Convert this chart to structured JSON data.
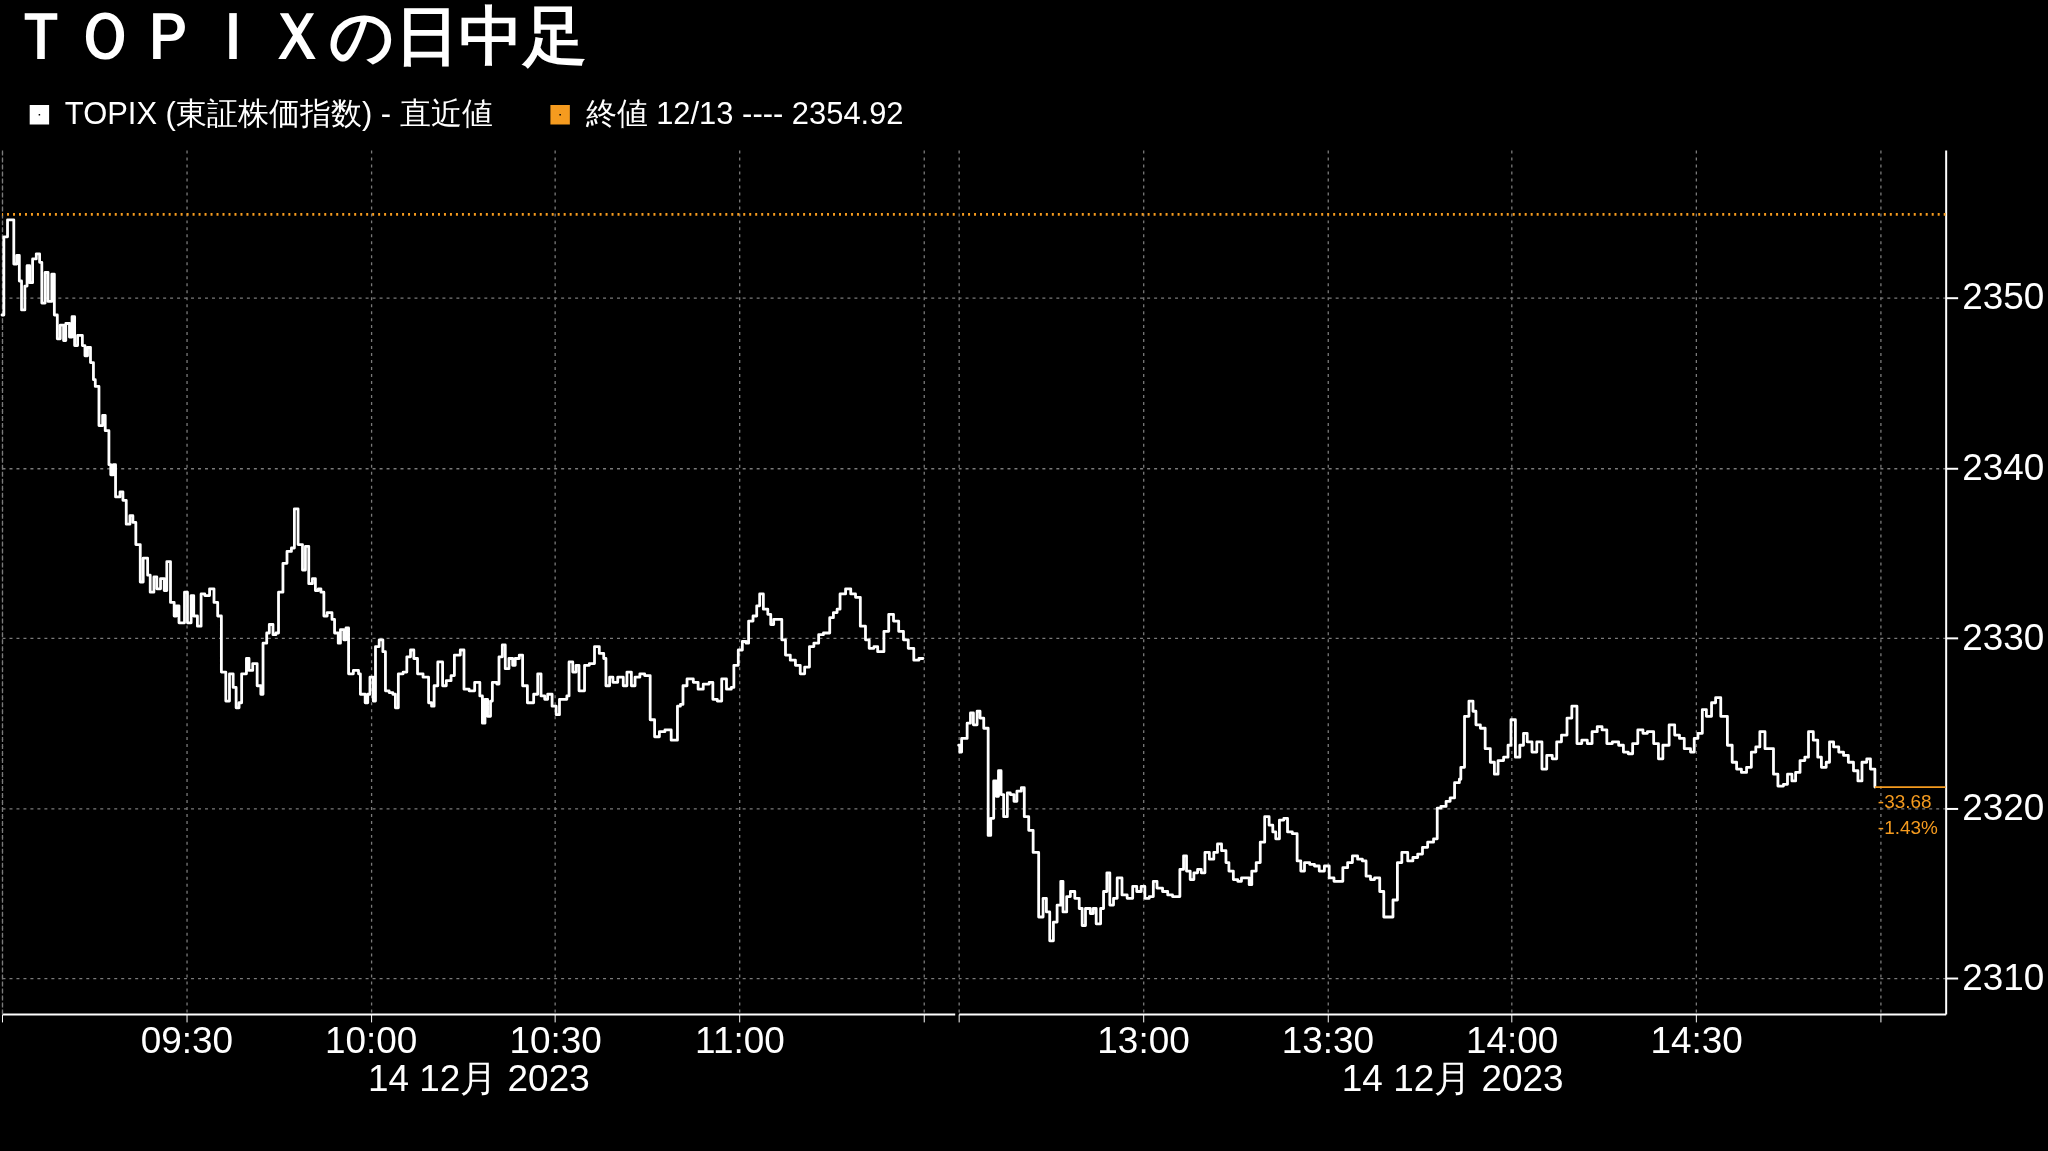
{
  "chart_data": [
    {
      "type": "step",
      "title": "ＴＯＰＩＸの日中足",
      "xlabel": "14 12月 2023",
      "legend": "top",
      "grid": true,
      "tick_labels": "x",
      "line_style": "solid",
      "xlim": [
        9.0,
        11.584
      ],
      "xticks": [
        {
          "value": 9,
          "label": null
        },
        {
          "value": 9.5,
          "label": "09:30"
        },
        {
          "value": 10,
          "label": "10:00"
        },
        {
          "value": 10.5,
          "label": "10:30"
        },
        {
          "value": 11,
          "label": "11:00"
        },
        {
          "value": 11.5,
          "label": null
        }
      ],
      "ylim": [
        2307.9,
        2358.7
      ],
      "yticks": [
        2310,
        2320,
        2330,
        2340,
        2350
      ],
      "ref_lines": [
        {
          "axis": "y",
          "value": 2354.92,
          "label": "終値 12/13 ---- 2354.92",
          "color": "#f59b1f",
          "line_style": "dotted"
        }
      ],
      "series": [
        {
          "name": "TOPIX (東証株価指数) - 直近値",
          "color": "#ffffff",
          "x": [
            9.0,
            9.005,
            9.015,
            9.032,
            9.04,
            9.047,
            9.053,
            9.062,
            9.068,
            9.075,
            9.083,
            9.093,
            9.102,
            9.108,
            9.117,
            9.125,
            9.135,
            9.142,
            9.15,
            9.158,
            9.167,
            9.173,
            9.183,
            9.19,
            9.197,
            9.205,
            9.218,
            9.225,
            9.232,
            9.24,
            9.248,
            9.253,
            9.263,
            9.273,
            9.28,
            9.29,
            9.295,
            9.302,
            9.308,
            9.32,
            9.328,
            9.337,
            9.347,
            9.355,
            9.363,
            9.375,
            9.383,
            9.395,
            9.402,
            9.412,
            9.42,
            9.43,
            9.44,
            9.447,
            9.457,
            9.467,
            9.473,
            9.48,
            9.495,
            9.503,
            9.513,
            9.52,
            9.53,
            9.54,
            9.55,
            9.563,
            9.575,
            9.585,
            9.595,
            9.607,
            9.617,
            9.627,
            9.635,
            9.643,
            9.65,
            9.663,
            9.67,
            9.68,
            9.692,
            9.702,
            9.708,
            9.718,
            9.725,
            9.735,
            9.743,
            9.75,
            9.762,
            9.773,
            9.785,
            9.793,
            9.803,
            9.815,
            9.823,
            9.832,
            9.842,
            9.85,
            9.858,
            9.865,
            9.873,
            9.882,
            9.895,
            9.902,
            9.912,
            9.918,
            9.927,
            9.933,
            9.94,
            9.953,
            9.967,
            9.972,
            9.985,
            9.992,
            9.998,
            10.007,
            10.013,
            10.023,
            10.033,
            10.04,
            10.05,
            10.06,
            10.067,
            10.075,
            10.088,
            10.098,
            10.108,
            10.117,
            10.127,
            10.142,
            10.157,
            10.165,
            10.172,
            10.182,
            10.195,
            10.205,
            10.218,
            10.227,
            10.243,
            10.253,
            10.267,
            10.282,
            10.296,
            10.303,
            10.31,
            10.317,
            10.325,
            10.33,
            10.342,
            10.348,
            10.357,
            10.365,
            10.375,
            10.385,
            10.392,
            10.403,
            10.412,
            10.425,
            10.442,
            10.453,
            10.462,
            10.472,
            10.48,
            10.492,
            10.503,
            10.512,
            10.532,
            10.538,
            10.548,
            10.557,
            10.565,
            10.58,
            10.593,
            10.607,
            10.62,
            10.632,
            10.638,
            10.648,
            10.657,
            10.67,
            10.685,
            10.695,
            10.707,
            10.717,
            10.73,
            10.743,
            10.758,
            10.77,
            10.783,
            10.798,
            10.815,
            10.832,
            10.84,
            10.847,
            10.858,
            10.875,
            10.888,
            10.902,
            10.918,
            10.928,
            10.94,
            10.952,
            10.965,
            10.978,
            10.985,
            10.997,
            11.008,
            11.018,
            11.025,
            11.037,
            11.047,
            11.055,
            11.065,
            11.077,
            11.085,
            11.093,
            11.115,
            11.125,
            11.138,
            11.152,
            11.165,
            11.177,
            11.19,
            11.202,
            11.215,
            11.228,
            11.245,
            11.255,
            11.265,
            11.273,
            11.288,
            11.302,
            11.315,
            11.328,
            11.342,
            11.352,
            11.365,
            11.375,
            11.392,
            11.405,
            11.418,
            11.432,
            11.445,
            11.458,
            11.473,
            11.487,
            11.498
          ],
          "values": [
            2349.0,
            2353.6,
            2354.6,
            2352.0,
            2352.5,
            2351.0,
            2349.3,
            2350.7,
            2351.9,
            2350.9,
            2352.3,
            2352.6,
            2352.1,
            2349.7,
            2351.5,
            2349.8,
            2351.4,
            2349.0,
            2347.6,
            2348.4,
            2347.5,
            2348.5,
            2347.7,
            2348.9,
            2347.2,
            2347.8,
            2347.2,
            2346.6,
            2347.1,
            2346.2,
            2345.2,
            2344.8,
            2342.5,
            2343.1,
            2342.2,
            2340.2,
            2339.6,
            2340.2,
            2338.3,
            2338.6,
            2338.1,
            2336.7,
            2337.2,
            2336.8,
            2335.5,
            2333.3,
            2334.7,
            2333.7,
            2332.7,
            2333.6,
            2332.9,
            2333.5,
            2332.8,
            2334.5,
            2332.1,
            2331.3,
            2331.9,
            2330.9,
            2332.7,
            2330.9,
            2332.5,
            2331.3,
            2330.7,
            2332.6,
            2332.5,
            2332.9,
            2332.1,
            2331.3,
            2328.0,
            2326.3,
            2327.9,
            2327.1,
            2325.9,
            2326.2,
            2327.9,
            2328.8,
            2328.1,
            2328.5,
            2327.2,
            2326.7,
            2329.7,
            2330.3,
            2330.8,
            2330.2,
            2330.3,
            2332.7,
            2334.4,
            2335.1,
            2335.3,
            2337.6,
            2335.5,
            2334.0,
            2335.4,
            2333.2,
            2333.5,
            2332.8,
            2332.9,
            2332.7,
            2331.3,
            2331.5,
            2331.1,
            2330.3,
            2329.7,
            2330.5,
            2329.9,
            2330.6,
            2327.9,
            2328.1,
            2327.9,
            2326.7,
            2326.2,
            2326.7,
            2327.7,
            2326.3,
            2329.5,
            2329.9,
            2329.2,
            2326.9,
            2326.8,
            2326.7,
            2325.9,
            2327.9,
            2328.0,
            2328.9,
            2329.3,
            2328.8,
            2327.9,
            2327.7,
            2326.2,
            2326.0,
            2327.2,
            2328.6,
            2327.2,
            2327.5,
            2327.8,
            2329.0,
            2329.3,
            2327.0,
            2326.9,
            2327.4,
            2326.6,
            2325.0,
            2326.4,
            2325.4,
            2326.3,
            2327.4,
            2327.3,
            2328.9,
            2329.6,
            2328.2,
            2328.8,
            2328.4,
            2328.8,
            2329.0,
            2327.2,
            2326.2,
            2326.7,
            2327.9,
            2326.6,
            2326.4,
            2326.7,
            2326.0,
            2325.5,
            2326.4,
            2326.6,
            2328.6,
            2328.0,
            2328.4,
            2326.9,
            2328.4,
            2328.5,
            2329.5,
            2329.1,
            2328.8,
            2327.2,
            2327.7,
            2327.4,
            2327.7,
            2327.2,
            2328.0,
            2327.2,
            2327.7,
            2327.9,
            2327.8,
            2325.2,
            2324.2,
            2324.5,
            2324.6,
            2324.0,
            2326.0,
            2326.1,
            2327.2,
            2327.6,
            2327.4,
            2327.0,
            2327.3,
            2327.4,
            2326.4,
            2326.3,
            2327.6,
            2327.0,
            2327.1,
            2328.4,
            2329.3,
            2329.8,
            2329.7,
            2331.0,
            2331.3,
            2331.9,
            2332.6,
            2331.7,
            2331.4,
            2330.8,
            2331.1,
            2329.9,
            2329.0,
            2328.7,
            2328.4,
            2327.9,
            2328.3,
            2329.5,
            2329.7,
            2330.2,
            2330.3,
            2331.2,
            2331.5,
            2331.7,
            2332.6,
            2332.9,
            2332.6,
            2332.4,
            2330.7,
            2329.9,
            2329.4,
            2329.5,
            2329.2,
            2330.4,
            2331.4,
            2331.0,
            2330.4,
            2329.9,
            2329.4,
            2328.7,
            2328.8,
            2328.8
          ]
        }
      ]
    },
    {
      "type": "step",
      "xlabel": "14 12月 2023",
      "grid": true,
      "line_style": "solid",
      "xlim": [
        12.5,
        15.177
      ],
      "xticks": [
        {
          "value": 12.5,
          "label": null
        },
        {
          "value": 13,
          "label": "13:00"
        },
        {
          "value": 13.5,
          "label": "13:30"
        },
        {
          "value": 14,
          "label": "14:00"
        },
        {
          "value": 14.5,
          "label": "14:30"
        },
        {
          "value": 15,
          "label": null
        }
      ],
      "ylim": [
        2307.9,
        2358.7
      ],
      "yticks": [
        2310,
        2320,
        2330,
        2340,
        2350
      ],
      "ref_lines": [
        {
          "axis": "y",
          "value": 2354.92,
          "color": "#f59b1f",
          "line_style": "dotted"
        }
      ],
      "annotations": [
        {
          "text": "-33.68",
          "x": 14.985,
          "y": 2321.24
        },
        {
          "text": "-1.43%",
          "x": 14.985,
          "y": 2321.24
        }
      ],
      "series": [
        {
          "color": "#ffffff",
          "x": [
            12.5,
            12.503,
            12.508,
            12.523,
            12.532,
            12.54,
            12.55,
            12.558,
            12.568,
            12.58,
            12.587,
            12.595,
            12.602,
            12.608,
            12.615,
            12.622,
            12.632,
            12.64,
            12.65,
            12.658,
            12.67,
            12.678,
            12.69,
            12.702,
            12.717,
            12.729,
            12.738,
            12.747,
            12.757,
            12.767,
            12.777,
            12.783,
            12.793,
            12.803,
            12.815,
            12.827,
            12.835,
            12.844,
            12.857,
            12.865,
            12.873,
            12.885,
            12.893,
            12.902,
            12.91,
            12.92,
            12.93,
            12.943,
            12.957,
            12.972,
            12.983,
            12.995,
            13.005,
            13.017,
            13.028,
            13.038,
            13.053,
            13.067,
            13.08,
            13.1,
            13.11,
            13.118,
            13.128,
            13.138,
            13.148,
            13.158,
            13.168,
            13.18,
            13.192,
            13.202,
            13.213,
            13.225,
            13.233,
            13.245,
            13.257,
            13.267,
            13.288,
            13.295,
            13.307,
            13.318,
            13.33,
            13.342,
            13.352,
            13.36,
            13.37,
            13.382,
            13.392,
            13.405,
            13.418,
            13.428,
            13.438,
            13.452,
            13.465,
            13.478,
            13.492,
            13.505,
            13.518,
            13.542,
            13.555,
            13.568,
            13.582,
            13.595,
            13.605,
            13.617,
            13.628,
            13.642,
            13.653,
            13.678,
            13.69,
            13.702,
            13.718,
            13.732,
            13.745,
            13.758,
            13.772,
            13.788,
            13.798,
            13.808,
            13.822,
            13.833,
            13.845,
            13.858,
            13.862,
            13.872,
            13.884,
            13.895,
            13.903,
            13.915,
            13.928,
            13.942,
            13.953,
            13.963,
            13.978,
            13.99,
            13.998,
            14.01,
            14.022,
            14.032,
            14.042,
            14.055,
            14.068,
            14.082,
            14.095,
            14.11,
            14.122,
            14.135,
            14.15,
            14.163,
            14.177,
            14.19,
            14.205,
            14.218,
            14.232,
            14.245,
            14.258,
            14.273,
            14.29,
            14.303,
            14.316,
            14.328,
            14.342,
            14.356,
            14.368,
            14.385,
            14.398,
            14.41,
            14.427,
            14.442,
            14.455,
            14.468,
            14.485,
            14.495,
            14.505,
            14.517,
            14.528,
            14.542,
            14.553,
            14.567,
            14.585,
            14.598,
            14.61,
            14.623,
            14.637,
            14.65,
            14.662,
            14.673,
            14.687,
            14.71,
            14.722,
            14.737,
            14.748,
            14.76,
            14.77,
            14.782,
            14.795,
            14.805,
            14.818,
            14.83,
            14.84,
            14.853,
            14.862,
            14.873,
            14.887,
            14.9,
            14.913,
            14.927,
            14.939,
            14.95,
            14.963,
            14.973,
            14.985
          ],
          "values": [
            2323.7,
            2323.3,
            2324.1,
            2325.0,
            2325.6,
            2324.9,
            2325.7,
            2325.3,
            2324.7,
            2318.4,
            2319.4,
            2321.6,
            2320.7,
            2322.2,
            2320.8,
            2319.5,
            2320.9,
            2320.8,
            2320.4,
            2321.0,
            2321.2,
            2319.5,
            2318.7,
            2317.4,
            2313.6,
            2314.7,
            2313.9,
            2312.2,
            2313.3,
            2314.3,
            2315.7,
            2313.9,
            2314.8,
            2315.1,
            2314.7,
            2314.1,
            2313.1,
            2314.1,
            2313.8,
            2314.1,
            2313.2,
            2314.1,
            2315.1,
            2316.2,
            2314.3,
            2314.7,
            2315.9,
            2314.9,
            2314.7,
            2315.4,
            2315.1,
            2315.4,
            2314.7,
            2314.8,
            2315.7,
            2315.3,
            2315.1,
            2314.9,
            2314.8,
            2316.4,
            2317.2,
            2316.3,
            2315.8,
            2316.2,
            2316.4,
            2316.2,
            2317.4,
            2317.0,
            2317.4,
            2317.9,
            2317.5,
            2316.8,
            2316.3,
            2315.8,
            2315.7,
            2315.9,
            2315.5,
            2316.3,
            2316.8,
            2318.0,
            2319.5,
            2319.0,
            2318.6,
            2318.2,
            2319.3,
            2319.4,
            2318.6,
            2318.5,
            2316.9,
            2316.3,
            2316.8,
            2316.7,
            2316.6,
            2316.3,
            2316.6,
            2315.9,
            2315.7,
            2316.5,
            2316.8,
            2317.2,
            2317.0,
            2316.9,
            2316.0,
            2315.8,
            2315.9,
            2315.1,
            2313.6,
            2314.6,
            2316.8,
            2317.4,
            2316.9,
            2317.1,
            2317.3,
            2317.7,
            2318.0,
            2318.2,
            2320.0,
            2320.1,
            2320.4,
            2320.6,
            2321.5,
            2321.7,
            2322.4,
            2325.4,
            2326.3,
            2325.7,
            2324.9,
            2324.7,
            2323.5,
            2322.7,
            2322.0,
            2322.8,
            2323.0,
            2323.7,
            2325.2,
            2323.0,
            2323.7,
            2324.4,
            2323.9,
            2323.3,
            2323.9,
            2322.3,
            2323.1,
            2322.9,
            2323.9,
            2324.3,
            2325.3,
            2326.0,
            2323.8,
            2324.0,
            2323.8,
            2324.5,
            2324.8,
            2324.6,
            2323.8,
            2323.9,
            2323.7,
            2323.3,
            2323.2,
            2323.8,
            2324.6,
            2324.4,
            2324.5,
            2323.8,
            2322.9,
            2323.7,
            2324.9,
            2324.3,
            2324.1,
            2323.5,
            2323.3,
            2324.1,
            2324.4,
            2325.8,
            2325.4,
            2326.2,
            2326.5,
            2325.4,
            2323.7,
            2322.7,
            2322.3,
            2322.1,
            2322.4,
            2323.3,
            2323.6,
            2324.5,
            2323.5,
            2322.0,
            2321.3,
            2321.4,
            2322.0,
            2321.6,
            2322.1,
            2322.8,
            2323.0,
            2324.5,
            2324.0,
            2323.0,
            2322.4,
            2322.7,
            2323.9,
            2323.6,
            2323.3,
            2323.1,
            2322.7,
            2322.2,
            2321.6,
            2322.7,
            2322.9,
            2322.3,
            2321.24
          ]
        }
      ]
    }
  ]
}
